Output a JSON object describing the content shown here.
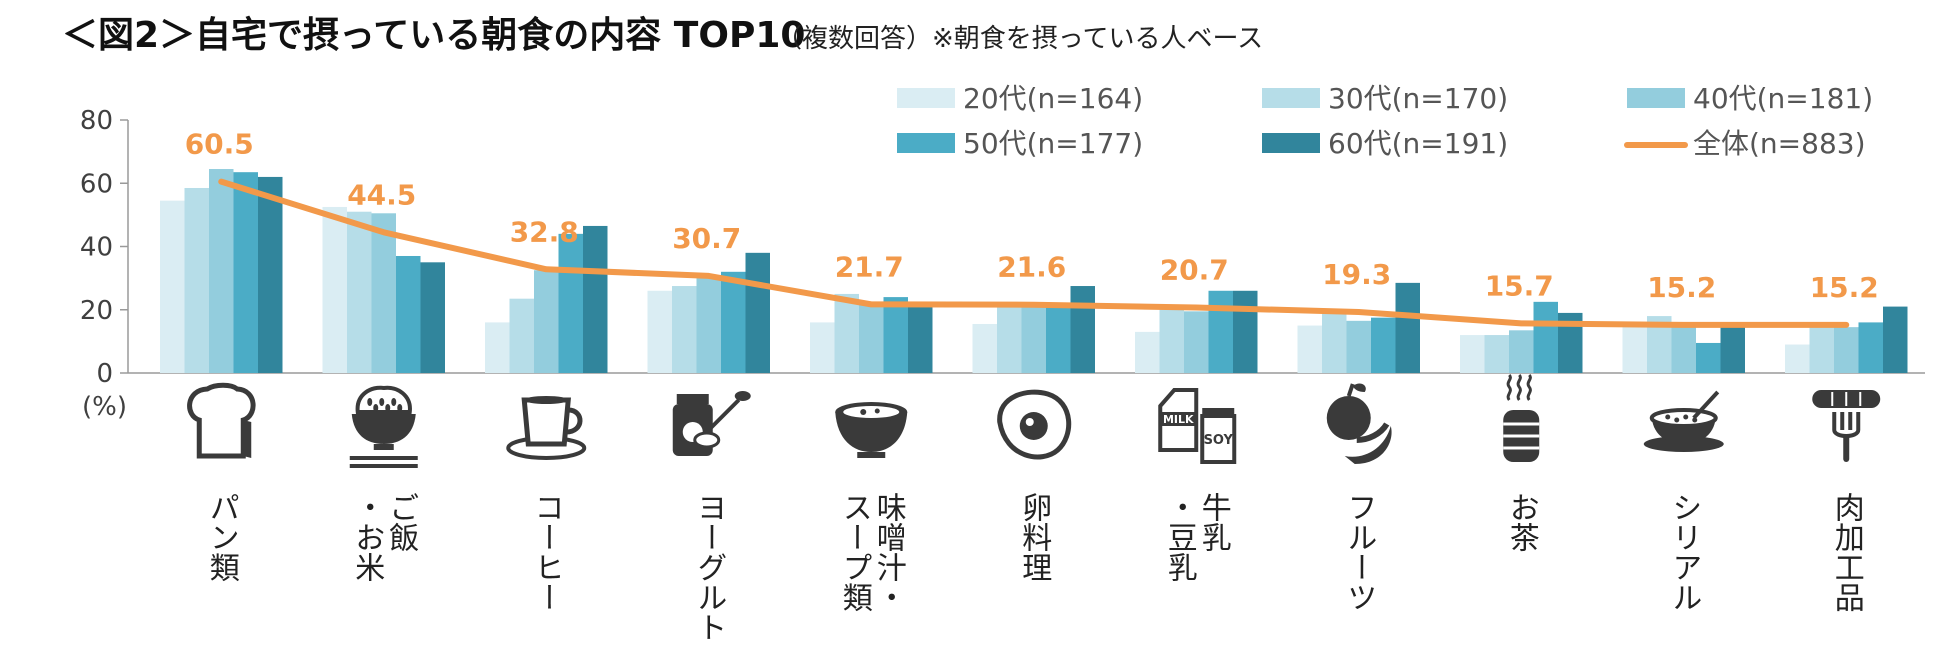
{
  "chart_data": {
    "type": "bar",
    "title": "＜図2＞自宅で摂っている朝食の内容 TOP10",
    "subtitle": "（複数回答）※朝食を摂っている人ベース",
    "ylabel": "(%)",
    "ylim": [
      0,
      80
    ],
    "yticks": [
      0,
      20,
      40,
      60,
      80
    ],
    "categories": [
      "パン類",
      "ご飯・お米",
      "コーヒー",
      "ヨーグルト",
      "味噌汁・スープ類",
      "卵料理",
      "牛乳・豆乳",
      "フルーツ",
      "お茶",
      "シリアル",
      "肉加工品"
    ],
    "category_lines": [
      [
        "パン類"
      ],
      [
        "ご飯",
        "・お米"
      ],
      [
        "コーヒー"
      ],
      [
        "ヨーグルト"
      ],
      [
        "味噌汁・",
        "スープ類"
      ],
      [
        "卵料理"
      ],
      [
        "牛乳",
        "・豆乳"
      ],
      [
        "フルーツ"
      ],
      [
        "お茶"
      ],
      [
        "シリアル"
      ],
      [
        "肉加工品"
      ]
    ],
    "series": [
      {
        "name": "20代(n=164)",
        "color": "#daedf3",
        "values": [
          54.5,
          52.5,
          16,
          26,
          16,
          15.5,
          13,
          15,
          12,
          15,
          9
        ]
      },
      {
        "name": "30代(n=170)",
        "color": "#b6dde8",
        "values": [
          58.5,
          51,
          23.5,
          27.5,
          25,
          21.5,
          20.5,
          19,
          12,
          18,
          15.5
        ]
      },
      {
        "name": "40代(n=181)",
        "color": "#93cddd",
        "values": [
          64.5,
          50.5,
          32.5,
          30.5,
          21.5,
          21,
          19.5,
          16.5,
          13.5,
          15.5,
          14.5
        ]
      },
      {
        "name": "50代(n=177)",
        "color": "#4bacc6",
        "values": [
          63.5,
          37,
          44,
          32,
          24,
          21.5,
          26,
          17.5,
          22.5,
          9.5,
          16
        ]
      },
      {
        "name": "60代(n=191)",
        "color": "#31859c",
        "values": [
          62,
          35,
          46.5,
          38,
          21.5,
          27.5,
          26,
          28.5,
          19,
          15,
          21
        ]
      }
    ],
    "line_series": {
      "name": "全体(n=883)",
      "color": "#f2994a",
      "values": [
        60.5,
        44.5,
        32.8,
        30.7,
        21.7,
        21.6,
        20.7,
        19.3,
        15.7,
        15.2,
        15.2
      ]
    },
    "data_labels": [
      "60.5",
      "44.5",
      "32.8",
      "30.7",
      "21.7",
      "21.6",
      "20.7",
      "19.3",
      "15.7",
      "15.2",
      "15.2"
    ],
    "icons": [
      "bread-icon",
      "rice-bowl-icon",
      "coffee-cup-icon",
      "yogurt-jar-icon",
      "soup-bowl-icon",
      "fried-egg-icon",
      "milk-carton-icon",
      "fruit-icon",
      "tea-canister-icon",
      "cereal-bowl-icon",
      "sausage-icon"
    ],
    "legend_position": "top-right"
  },
  "icon_texts": {
    "milk": "MILK",
    "soy": "SOY"
  }
}
